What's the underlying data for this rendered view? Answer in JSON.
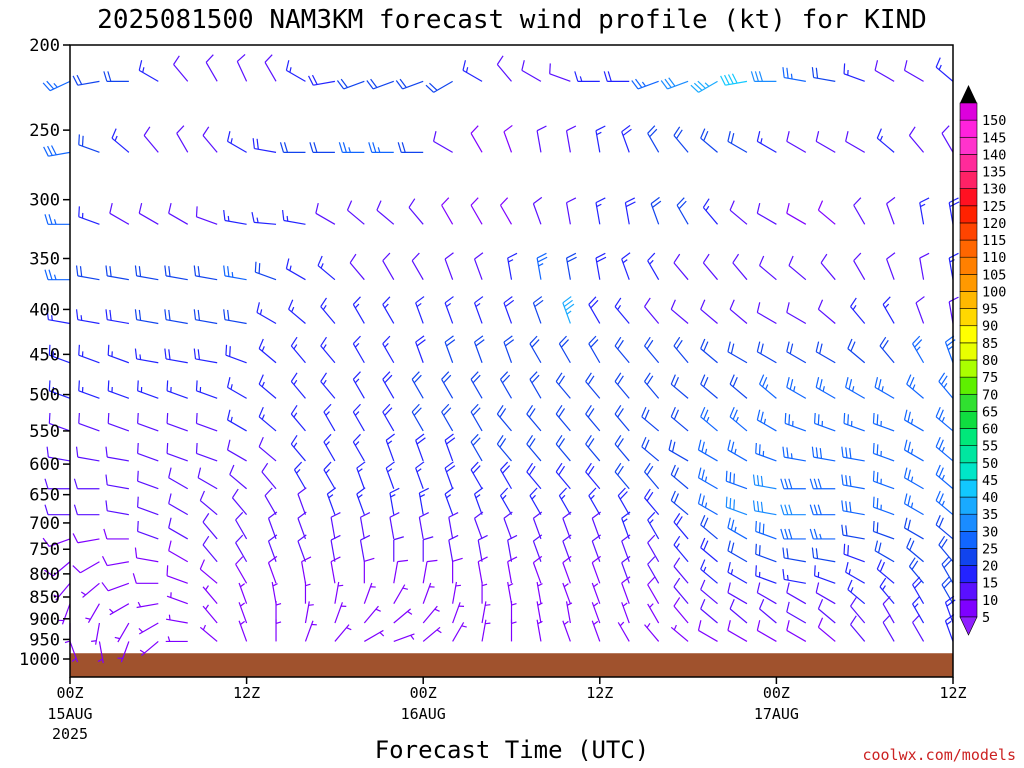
{
  "chart_data": {
    "type": "wind_barbs",
    "title": "2025081500 NAM3KM forecast wind profile (kt) for KIND",
    "xlabel": "Forecast Time (UTC)",
    "ylabel": "",
    "credit": "coolwx.com/models",
    "y_axis": {
      "scale": "log-pressure",
      "range": [
        1000,
        200
      ],
      "ticks": [
        "200",
        "250",
        "300",
        "350",
        "400",
        "450",
        "500",
        "550",
        "600",
        "650",
        "700",
        "750",
        "800",
        "850",
        "900",
        "950",
        "1000"
      ]
    },
    "x_axis": {
      "range_hours": [
        0,
        60
      ],
      "ticks": [
        {
          "hour": 0,
          "label": "00Z",
          "date": "15AUG",
          "year": "2025"
        },
        {
          "hour": 12,
          "label": "12Z",
          "date": "",
          "year": ""
        },
        {
          "hour": 24,
          "label": "00Z",
          "date": "16AUG",
          "year": ""
        },
        {
          "hour": 36,
          "label": "12Z",
          "date": "",
          "year": ""
        },
        {
          "hour": 48,
          "label": "00Z",
          "date": "17AUG",
          "year": ""
        },
        {
          "hour": 60,
          "label": "12Z",
          "date": "",
          "year": ""
        }
      ]
    },
    "ground_level_hPa": 985,
    "colorbar": {
      "units": "kt",
      "levels": [
        "5",
        "10",
        "15",
        "20",
        "25",
        "30",
        "35",
        "40",
        "45",
        "50",
        "55",
        "60",
        "65",
        "70",
        "75",
        "80",
        "85",
        "90",
        "95",
        "100",
        "105",
        "110",
        "115",
        "120",
        "125",
        "130",
        "135",
        "140",
        "145",
        "150"
      ],
      "colors": [
        "#7f00ff",
        "#5a10ff",
        "#2323ff",
        "#1144ee",
        "#1166ff",
        "#1a8cff",
        "#19aaff",
        "#12c8ff",
        "#00e6c8",
        "#00e6a0",
        "#00e87a",
        "#10dd40",
        "#30e030",
        "#5ef000",
        "#aaff00",
        "#e8ff00",
        "#ffff00",
        "#ffd800",
        "#ffb800",
        "#ff9900",
        "#ff8000",
        "#ff6600",
        "#ff4400",
        "#ff2200",
        "#ff1122",
        "#ff2266",
        "#ff2a9a",
        "#ff33cc",
        "#ff22dd",
        "#dd00dd"
      ],
      "top_color": "#000000",
      "bottom_color": "#9020ff"
    },
    "hours": [
      0,
      2,
      4,
      6,
      8,
      10,
      12,
      14,
      16,
      18,
      20,
      22,
      24,
      26,
      28,
      30,
      32,
      34,
      36,
      38,
      40,
      42,
      44,
      46,
      48,
      50,
      52,
      54,
      56,
      58,
      60
    ],
    "levels_hPa": [
      220,
      265,
      320,
      370,
      415,
      460,
      505,
      550,
      595,
      640,
      685,
      730,
      775,
      820,
      865,
      910,
      955
    ],
    "wind_dir_deg": [
      [
        245,
        260,
        270,
        300,
        320,
        330,
        335,
        330,
        300,
        260,
        250,
        250,
        250,
        240,
        300,
        320,
        300,
        290,
        270,
        270,
        250,
        250,
        240,
        260,
        270,
        280,
        280,
        290,
        300,
        300,
        310
      ],
      [
        260,
        290,
        310,
        320,
        330,
        320,
        300,
        280,
        270,
        270,
        270,
        270,
        270,
        300,
        330,
        340,
        350,
        350,
        350,
        340,
        330,
        320,
        310,
        300,
        300,
        300,
        300,
        300,
        310,
        320,
        330
      ],
      [
        270,
        290,
        300,
        300,
        300,
        290,
        280,
        275,
        280,
        300,
        310,
        310,
        320,
        330,
        330,
        330,
        340,
        350,
        350,
        350,
        340,
        330,
        320,
        310,
        300,
        300,
        310,
        330,
        340,
        350,
        350
      ],
      [
        270,
        280,
        280,
        280,
        280,
        280,
        280,
        290,
        300,
        310,
        320,
        330,
        330,
        340,
        340,
        350,
        350,
        350,
        350,
        340,
        330,
        320,
        320,
        320,
        310,
        310,
        320,
        330,
        340,
        350,
        350
      ],
      [
        280,
        280,
        280,
        280,
        280,
        280,
        280,
        300,
        310,
        320,
        330,
        330,
        340,
        340,
        340,
        340,
        340,
        340,
        330,
        320,
        320,
        310,
        310,
        310,
        300,
        300,
        310,
        320,
        330,
        340,
        350
      ],
      [
        290,
        290,
        290,
        280,
        280,
        280,
        290,
        310,
        320,
        320,
        330,
        330,
        340,
        340,
        340,
        340,
        330,
        330,
        330,
        320,
        320,
        320,
        310,
        300,
        300,
        300,
        300,
        310,
        320,
        330,
        340
      ],
      [
        290,
        290,
        290,
        290,
        290,
        290,
        300,
        310,
        320,
        320,
        330,
        330,
        330,
        330,
        330,
        330,
        330,
        320,
        320,
        320,
        320,
        310,
        310,
        310,
        310,
        300,
        300,
        300,
        300,
        310,
        320
      ],
      [
        290,
        290,
        290,
        290,
        290,
        290,
        300,
        310,
        320,
        330,
        330,
        330,
        330,
        330,
        330,
        320,
        320,
        320,
        320,
        320,
        310,
        310,
        310,
        310,
        300,
        290,
        290,
        290,
        290,
        300,
        310
      ],
      [
        280,
        280,
        280,
        290,
        290,
        290,
        300,
        310,
        320,
        330,
        330,
        340,
        340,
        340,
        330,
        320,
        320,
        320,
        320,
        320,
        310,
        300,
        300,
        300,
        290,
        280,
        280,
        280,
        290,
        300,
        310
      ],
      [
        270,
        270,
        280,
        290,
        300,
        300,
        310,
        320,
        330,
        330,
        340,
        340,
        340,
        340,
        330,
        330,
        320,
        320,
        320,
        320,
        320,
        310,
        300,
        290,
        280,
        270,
        270,
        280,
        290,
        300,
        310
      ],
      [
        270,
        270,
        280,
        290,
        300,
        310,
        320,
        330,
        340,
        340,
        340,
        350,
        350,
        340,
        340,
        330,
        330,
        330,
        330,
        330,
        320,
        310,
        300,
        290,
        280,
        270,
        270,
        280,
        290,
        300,
        310
      ],
      [
        250,
        260,
        270,
        290,
        300,
        320,
        330,
        340,
        340,
        350,
        350,
        350,
        350,
        350,
        340,
        340,
        340,
        340,
        340,
        340,
        330,
        320,
        310,
        300,
        290,
        270,
        270,
        280,
        290,
        300,
        310
      ],
      [
        230,
        240,
        260,
        280,
        300,
        320,
        330,
        340,
        340,
        350,
        350,
        360,
        360,
        350,
        350,
        350,
        340,
        340,
        340,
        340,
        330,
        320,
        310,
        300,
        290,
        280,
        280,
        290,
        300,
        310,
        320
      ],
      [
        220,
        230,
        250,
        270,
        290,
        310,
        330,
        340,
        350,
        350,
        360,
        10,
        10,
        360,
        350,
        350,
        340,
        340,
        340,
        340,
        330,
        320,
        310,
        300,
        290,
        280,
        290,
        300,
        310,
        320,
        330
      ],
      [
        200,
        210,
        240,
        260,
        290,
        320,
        340,
        350,
        360,
        10,
        20,
        30,
        20,
        10,
        360,
        350,
        350,
        340,
        340,
        340,
        330,
        320,
        310,
        300,
        300,
        300,
        300,
        310,
        320,
        330,
        330
      ],
      [
        180,
        190,
        210,
        240,
        280,
        320,
        340,
        360,
        10,
        20,
        40,
        50,
        40,
        20,
        10,
        360,
        350,
        350,
        340,
        340,
        330,
        320,
        310,
        310,
        310,
        300,
        310,
        320,
        330,
        330,
        340
      ],
      [
        160,
        170,
        200,
        230,
        270,
        310,
        340,
        360,
        20,
        40,
        60,
        70,
        50,
        30,
        10,
        360,
        350,
        340,
        340,
        330,
        320,
        310,
        300,
        300,
        300,
        300,
        310,
        320,
        330,
        330,
        340
      ]
    ],
    "wind_speed_kt": [
      [
        25,
        22,
        20,
        15,
        12,
        10,
        10,
        12,
        15,
        18,
        20,
        20,
        20,
        20,
        15,
        10,
        10,
        12,
        15,
        18,
        25,
        30,
        35,
        40,
        30,
        25,
        20,
        15,
        10,
        12,
        15
      ],
      [
        28,
        20,
        15,
        12,
        10,
        12,
        15,
        18,
        20,
        22,
        25,
        25,
        20,
        12,
        8,
        8,
        10,
        12,
        15,
        18,
        20,
        20,
        20,
        20,
        15,
        12,
        10,
        12,
        15,
        10,
        10
      ],
      [
        25,
        15,
        12,
        12,
        12,
        12,
        15,
        15,
        15,
        12,
        10,
        10,
        10,
        8,
        8,
        8,
        10,
        12,
        15,
        18,
        20,
        20,
        15,
        12,
        10,
        8,
        8,
        10,
        12,
        15,
        18
      ],
      [
        25,
        20,
        20,
        22,
        22,
        22,
        25,
        20,
        15,
        15,
        12,
        12,
        12,
        12,
        12,
        15,
        25,
        20,
        18,
        15,
        15,
        12,
        12,
        12,
        10,
        10,
        10,
        12,
        12,
        12,
        15
      ],
      [
        15,
        15,
        18,
        20,
        22,
        22,
        22,
        15,
        15,
        15,
        15,
        15,
        15,
        15,
        15,
        18,
        20,
        35,
        18,
        15,
        12,
        12,
        12,
        12,
        12,
        12,
        12,
        15,
        15,
        12,
        12
      ],
      [
        15,
        15,
        15,
        15,
        18,
        18,
        18,
        15,
        15,
        15,
        15,
        15,
        18,
        20,
        20,
        20,
        20,
        20,
        20,
        20,
        20,
        20,
        20,
        22,
        22,
        22,
        22,
        22,
        22,
        25,
        25
      ],
      [
        15,
        15,
        15,
        15,
        15,
        15,
        15,
        15,
        15,
        15,
        15,
        18,
        20,
        20,
        20,
        20,
        20,
        20,
        20,
        20,
        20,
        20,
        22,
        22,
        25,
        25,
        25,
        25,
        25,
        25,
        25
      ],
      [
        12,
        12,
        12,
        12,
        12,
        12,
        15,
        15,
        15,
        15,
        15,
        18,
        20,
        20,
        20,
        20,
        20,
        22,
        22,
        22,
        22,
        22,
        25,
        25,
        25,
        25,
        25,
        25,
        25,
        25,
        25
      ],
      [
        10,
        10,
        10,
        10,
        12,
        12,
        12,
        12,
        15,
        15,
        15,
        15,
        18,
        18,
        20,
        20,
        20,
        20,
        20,
        20,
        22,
        22,
        25,
        25,
        25,
        25,
        28,
        28,
        25,
        25,
        25
      ],
      [
        10,
        10,
        10,
        10,
        10,
        12,
        12,
        12,
        15,
        15,
        15,
        15,
        15,
        18,
        18,
        18,
        18,
        18,
        18,
        20,
        20,
        22,
        25,
        28,
        30,
        28,
        28,
        28,
        25,
        25,
        25
      ],
      [
        10,
        10,
        10,
        10,
        10,
        10,
        12,
        12,
        12,
        15,
        15,
        15,
        15,
        15,
        15,
        15,
        15,
        15,
        15,
        18,
        18,
        20,
        25,
        30,
        30,
        30,
        28,
        28,
        25,
        25,
        25
      ],
      [
        8,
        8,
        8,
        10,
        10,
        10,
        10,
        10,
        12,
        12,
        12,
        12,
        12,
        12,
        12,
        12,
        12,
        12,
        12,
        15,
        15,
        18,
        20,
        25,
        28,
        28,
        25,
        22,
        22,
        22,
        22
      ],
      [
        8,
        8,
        8,
        8,
        8,
        10,
        10,
        10,
        10,
        10,
        10,
        10,
        10,
        10,
        10,
        10,
        10,
        10,
        10,
        12,
        12,
        15,
        18,
        20,
        22,
        20,
        20,
        18,
        20,
        22,
        22
      ],
      [
        6,
        6,
        8,
        8,
        8,
        8,
        8,
        8,
        8,
        8,
        8,
        8,
        8,
        8,
        8,
        8,
        8,
        8,
        8,
        10,
        10,
        12,
        15,
        15,
        15,
        15,
        15,
        15,
        18,
        20,
        22
      ],
      [
        5,
        5,
        6,
        6,
        6,
        6,
        6,
        6,
        6,
        6,
        6,
        6,
        6,
        6,
        6,
        6,
        6,
        6,
        6,
        8,
        8,
        10,
        12,
        12,
        12,
        12,
        12,
        15,
        15,
        18,
        20
      ],
      [
        5,
        5,
        5,
        5,
        5,
        5,
        5,
        5,
        5,
        5,
        5,
        5,
        5,
        5,
        5,
        5,
        5,
        5,
        5,
        6,
        6,
        8,
        10,
        10,
        10,
        10,
        10,
        12,
        12,
        15,
        18
      ],
      [
        5,
        5,
        5,
        5,
        5,
        5,
        5,
        5,
        5,
        5,
        5,
        5,
        5,
        5,
        5,
        5,
        5,
        5,
        5,
        5,
        5,
        6,
        8,
        8,
        8,
        8,
        8,
        10,
        10,
        12,
        15
      ]
    ]
  }
}
